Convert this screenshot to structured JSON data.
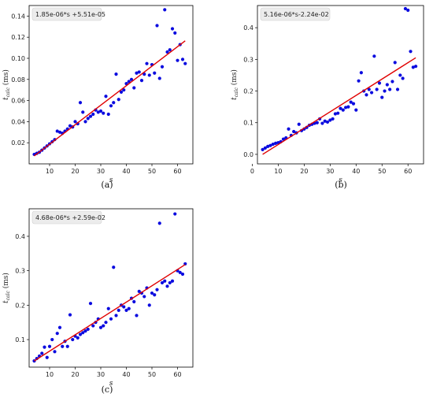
{
  "chart_data": [
    {
      "type": "scatter",
      "caption": "(a)",
      "annotation": "1.85e-06*s +5.51e-05",
      "xlabel": "s",
      "ylabel": "t_calc (ms)",
      "xlim": [
        2,
        66
      ],
      "ylim": [
        0,
        0.15
      ],
      "xticks": [
        10,
        20,
        30,
        40,
        50,
        60
      ],
      "yticks": [
        0.02,
        0.04,
        0.06,
        0.08,
        0.1,
        0.12,
        0.14
      ],
      "ytick_labels": [
        "0.02",
        "0.04",
        "0.06",
        "0.08",
        "0.10",
        "0.12",
        "0.14"
      ],
      "fit": {
        "x": [
          4,
          63
        ],
        "y": [
          0.0075,
          0.1166
        ]
      },
      "x": [
        4,
        5,
        6,
        7,
        8,
        9,
        10,
        11,
        12,
        13,
        14,
        15,
        16,
        17,
        18,
        19,
        20,
        21,
        22,
        23,
        24,
        25,
        26,
        27,
        28,
        29,
        30,
        31,
        32,
        33,
        34,
        35,
        36,
        37,
        38,
        39,
        40,
        41,
        42,
        43,
        44,
        45,
        46,
        47,
        48,
        49,
        50,
        51,
        52,
        53,
        54,
        55,
        56,
        57,
        58,
        59,
        60,
        61,
        62,
        63
      ],
      "y": [
        0.009,
        0.01,
        0.011,
        0.013,
        0.015,
        0.017,
        0.019,
        0.021,
        0.023,
        0.031,
        0.03,
        0.029,
        0.031,
        0.033,
        0.036,
        0.035,
        0.04,
        0.038,
        0.058,
        0.049,
        0.04,
        0.043,
        0.045,
        0.047,
        0.051,
        0.049,
        0.05,
        0.048,
        0.064,
        0.047,
        0.055,
        0.058,
        0.085,
        0.061,
        0.068,
        0.07,
        0.076,
        0.078,
        0.08,
        0.072,
        0.086,
        0.087,
        0.079,
        0.085,
        0.095,
        0.084,
        0.094,
        0.086,
        0.131,
        0.081,
        0.092,
        0.146,
        0.106,
        0.108,
        0.128,
        0.124,
        0.098,
        0.113,
        0.099,
        0.095
      ]
    },
    {
      "type": "scatter",
      "caption": "(b)",
      "annotation": "5.16e-06*s-2.24e-02",
      "xlabel": "s",
      "ylabel": "t_calc (ms)",
      "xlim": [
        2,
        66
      ],
      "ylim": [
        -0.03,
        0.47
      ],
      "xticks": [
        0,
        10,
        20,
        30,
        40,
        50,
        60
      ],
      "yticks": [
        0.0,
        0.1,
        0.2,
        0.3,
        0.4
      ],
      "ytick_labels": [
        "0.0",
        "0.1",
        "0.2",
        "0.3",
        "0.4"
      ],
      "fit": {
        "x": [
          4,
          63
        ],
        "y": [
          0.0,
          0.305
        ]
      },
      "x": [
        4,
        5,
        6,
        7,
        8,
        9,
        10,
        11,
        12,
        13,
        14,
        15,
        16,
        17,
        18,
        19,
        20,
        21,
        22,
        23,
        24,
        25,
        26,
        27,
        28,
        29,
        30,
        31,
        32,
        33,
        34,
        35,
        36,
        37,
        38,
        39,
        40,
        41,
        42,
        43,
        44,
        45,
        46,
        47,
        48,
        49,
        50,
        51,
        52,
        53,
        54,
        55,
        56,
        57,
        58,
        59,
        60,
        61,
        62,
        63
      ],
      "y": [
        0.015,
        0.02,
        0.025,
        0.028,
        0.032,
        0.035,
        0.037,
        0.04,
        0.048,
        0.052,
        0.08,
        0.06,
        0.072,
        0.068,
        0.095,
        0.075,
        0.08,
        0.085,
        0.092,
        0.095,
        0.098,
        0.1,
        0.112,
        0.098,
        0.105,
        0.102,
        0.108,
        0.112,
        0.128,
        0.13,
        0.145,
        0.14,
        0.148,
        0.15,
        0.165,
        0.16,
        0.14,
        0.232,
        0.258,
        0.2,
        0.188,
        0.205,
        0.195,
        0.31,
        0.205,
        0.225,
        0.18,
        0.2,
        0.22,
        0.205,
        0.23,
        0.29,
        0.205,
        0.25,
        0.24,
        0.46,
        0.455,
        0.325,
        0.275,
        0.278
      ]
    },
    {
      "type": "scatter",
      "caption": "(c)",
      "annotation": "4.68e-06*s +2.59e-02",
      "xlabel": "s",
      "ylabel": "t_calc (ms)",
      "xlim": [
        2,
        66
      ],
      "ylim": [
        0.02,
        0.48
      ],
      "xticks": [
        10,
        20,
        30,
        40,
        50,
        60
      ],
      "yticks": [
        0.1,
        0.2,
        0.3,
        0.4
      ],
      "ytick_labels": [
        "0.1",
        "0.2",
        "0.3",
        "0.4"
      ],
      "fit": {
        "x": [
          4,
          63
        ],
        "y": [
          0.038,
          0.318
        ]
      },
      "x": [
        4,
        5,
        6,
        7,
        8,
        9,
        10,
        11,
        12,
        13,
        14,
        15,
        16,
        17,
        18,
        19,
        20,
        21,
        22,
        23,
        24,
        25,
        26,
        27,
        28,
        29,
        30,
        31,
        32,
        33,
        34,
        35,
        36,
        37,
        38,
        39,
        40,
        41,
        42,
        43,
        44,
        45,
        46,
        47,
        48,
        49,
        50,
        51,
        52,
        53,
        54,
        55,
        56,
        57,
        58,
        59,
        60,
        61,
        62,
        63
      ],
      "y": [
        0.038,
        0.045,
        0.052,
        0.06,
        0.078,
        0.048,
        0.08,
        0.1,
        0.065,
        0.118,
        0.135,
        0.08,
        0.095,
        0.08,
        0.172,
        0.1,
        0.11,
        0.105,
        0.115,
        0.12,
        0.125,
        0.13,
        0.205,
        0.14,
        0.15,
        0.16,
        0.135,
        0.14,
        0.15,
        0.19,
        0.16,
        0.31,
        0.17,
        0.185,
        0.2,
        0.195,
        0.185,
        0.19,
        0.22,
        0.21,
        0.17,
        0.24,
        0.235,
        0.225,
        0.25,
        0.2,
        0.235,
        0.23,
        0.245,
        0.438,
        0.265,
        0.27,
        0.255,
        0.265,
        0.27,
        0.465,
        0.3,
        0.295,
        0.29,
        0.32
      ]
    }
  ]
}
